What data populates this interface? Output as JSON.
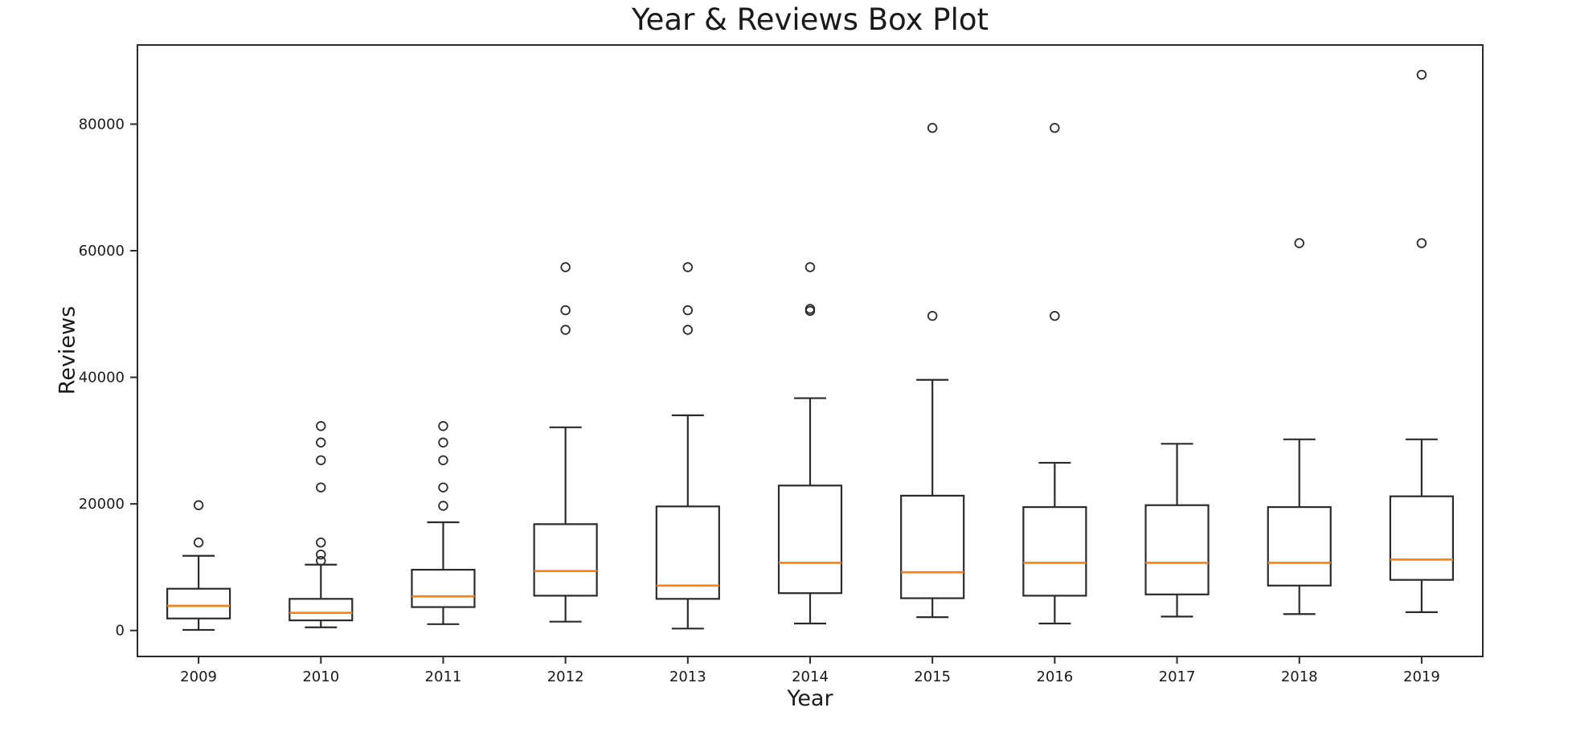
{
  "chart_data": {
    "type": "box",
    "title": "Year & Reviews Box Plot",
    "xlabel": "Year",
    "ylabel": "Reviews",
    "categories": [
      "2009",
      "2010",
      "2011",
      "2012",
      "2013",
      "2014",
      "2015",
      "2016",
      "2017",
      "2018",
      "2019"
    ],
    "y_ticks": [
      0,
      20000,
      40000,
      60000,
      80000
    ],
    "ylim": [
      -4100,
      92500
    ],
    "grid": false,
    "legend": null,
    "background_color": "#ffffff",
    "median_color": "#ff7f0e",
    "line_color": "#2b2b2b",
    "series": [
      {
        "category": "2009",
        "whislo": 100,
        "q1": 1900,
        "med": 3900,
        "q3": 6600,
        "whishi": 11800,
        "fliers": [
          13900,
          19800
        ]
      },
      {
        "category": "2010",
        "whislo": 500,
        "q1": 1600,
        "med": 2800,
        "q3": 5000,
        "whishi": 10400,
        "fliers": [
          11000,
          12000,
          13900,
          22600,
          26900,
          29700,
          32300
        ]
      },
      {
        "category": "2011",
        "whislo": 1000,
        "q1": 3700,
        "med": 5400,
        "q3": 9600,
        "whishi": 17100,
        "fliers": [
          19700,
          22600,
          26900,
          29700,
          32300
        ]
      },
      {
        "category": "2012",
        "whislo": 1400,
        "q1": 5500,
        "med": 9400,
        "q3": 16800,
        "whishi": 32100,
        "fliers": [
          47500,
          50600,
          57400
        ]
      },
      {
        "category": "2013",
        "whislo": 300,
        "q1": 5000,
        "med": 7100,
        "q3": 19600,
        "whishi": 34000,
        "fliers": [
          47500,
          50600,
          57400
        ]
      },
      {
        "category": "2014",
        "whislo": 1100,
        "q1": 5900,
        "med": 10700,
        "q3": 22900,
        "whishi": 36700,
        "fliers": [
          50500,
          50800,
          57400
        ]
      },
      {
        "category": "2015",
        "whislo": 2100,
        "q1": 5100,
        "med": 9200,
        "q3": 21300,
        "whishi": 39600,
        "fliers": [
          49700,
          79400
        ]
      },
      {
        "category": "2016",
        "whislo": 1100,
        "q1": 5500,
        "med": 10700,
        "q3": 19500,
        "whishi": 26500,
        "fliers": [
          49700,
          79400
        ]
      },
      {
        "category": "2017",
        "whislo": 2200,
        "q1": 5700,
        "med": 10700,
        "q3": 19800,
        "whishi": 29500,
        "fliers": []
      },
      {
        "category": "2018",
        "whislo": 2600,
        "q1": 7100,
        "med": 10700,
        "q3": 19500,
        "whishi": 30200,
        "fliers": [
          61200
        ]
      },
      {
        "category": "2019",
        "whislo": 2900,
        "q1": 8000,
        "med": 11200,
        "q3": 21200,
        "whishi": 30200,
        "fliers": [
          61200,
          87800
        ]
      }
    ]
  }
}
